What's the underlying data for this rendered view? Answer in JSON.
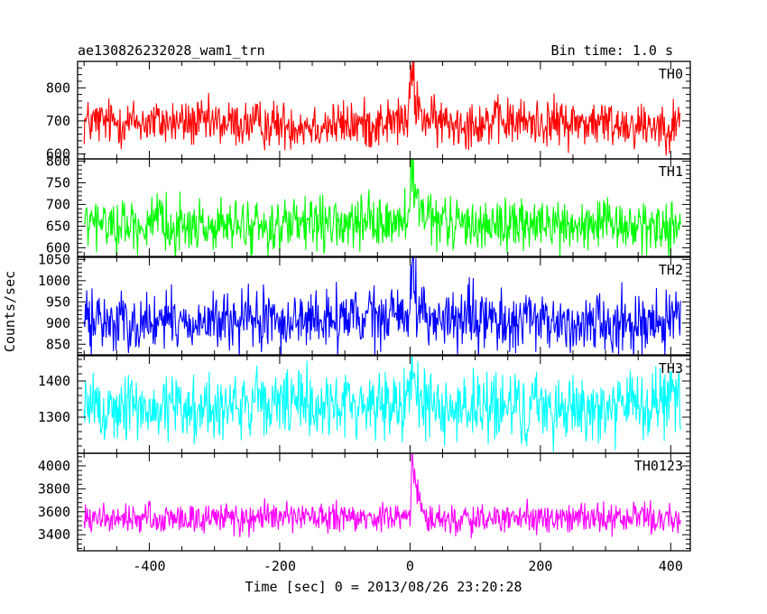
{
  "chart_data": {
    "type": "line",
    "title": "ae130826232028_wam1_trn",
    "bin_time": "Bin time: 1.0 s",
    "xlabel": "Time [sec] 0 = 2013/08/26 23:20:28",
    "ylabel": "Counts/sec",
    "xlim": [
      -510,
      430
    ],
    "x_ticks": [
      -400,
      -200,
      0,
      200,
      400
    ],
    "x_range": [
      -500,
      415
    ],
    "grid": false,
    "panels": [
      {
        "name": "TH0",
        "color": "#ff0000",
        "ylim": [
          585,
          880
        ],
        "ticks": [
          600,
          700,
          800
        ],
        "baseline": 692,
        "baseline_std": 36,
        "peak": 870,
        "peak_t": 1
      },
      {
        "name": "TH1",
        "color": "#00ff00",
        "ylim": [
          580,
          805
        ],
        "ticks": [
          600,
          650,
          700,
          750,
          800
        ],
        "baseline": 652,
        "baseline_std": 30,
        "peak": 800,
        "peak_t": 1
      },
      {
        "name": "TH2",
        "color": "#0000ff",
        "ylim": [
          825,
          1055
        ],
        "ticks": [
          850,
          900,
          950,
          1000,
          1050
        ],
        "baseline": 905,
        "baseline_std": 35,
        "peak": 1050,
        "peak_t": 1
      },
      {
        "name": "TH3",
        "color": "#00ffff",
        "ylim": [
          1200,
          1470
        ],
        "ticks": [
          1300,
          1400
        ],
        "baseline": 1330,
        "baseline_std": 48,
        "peak": 1460,
        "peak_t": 1
      },
      {
        "name": "TH0123",
        "color": "#ff00ff",
        "ylim": [
          3260,
          4110
        ],
        "ticks": [
          3400,
          3600,
          3800,
          4000
        ],
        "baseline": 3540,
        "baseline_std": 65,
        "peak": 4090,
        "peak_t": 3
      }
    ]
  }
}
